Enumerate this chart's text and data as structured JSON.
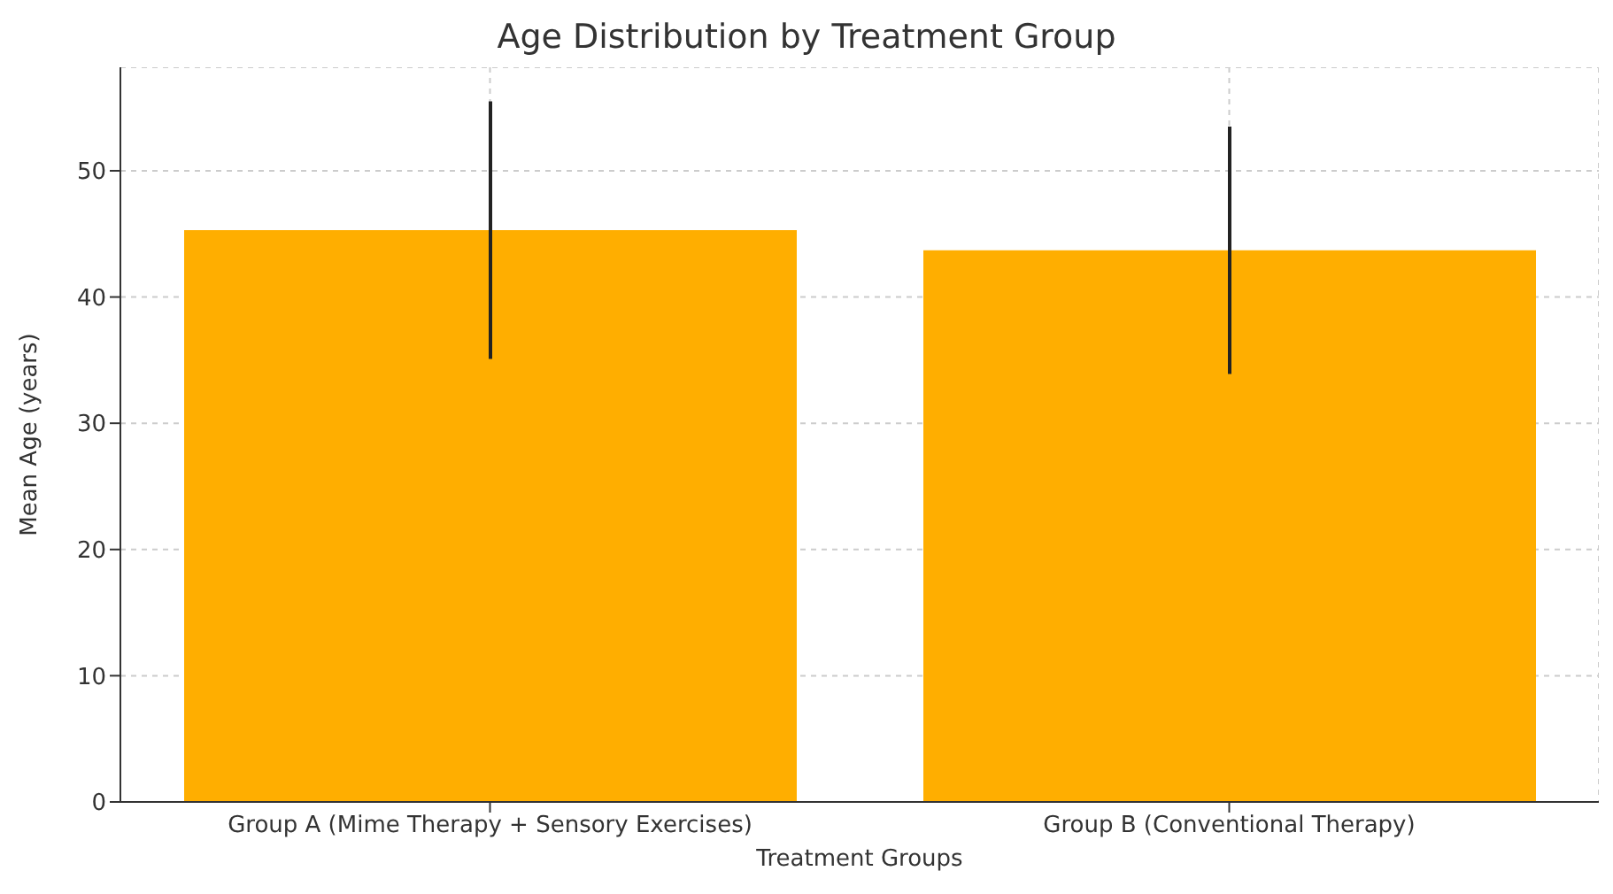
{
  "chart_data": {
    "type": "bar",
    "title": "Age Distribution by Treatment Group",
    "xlabel": "Treatment Groups",
    "ylabel": "Mean Age (years)",
    "categories": [
      "Group A (Mime Therapy + Sensory Exercises)",
      "Group B (Conventional Therapy)"
    ],
    "values": [
      45.3,
      43.7
    ],
    "errors": [
      10.2,
      9.8
    ],
    "color": "#ffae00",
    "ylim": [
      0,
      58.2
    ],
    "yticks": [
      0,
      10,
      20,
      30,
      40,
      50
    ],
    "grid": true
  }
}
